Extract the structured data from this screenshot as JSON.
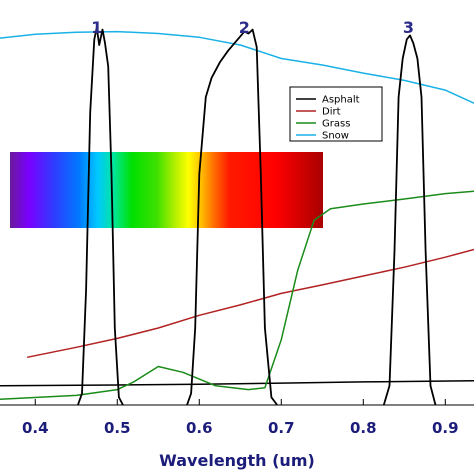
{
  "chart_data": {
    "type": "line",
    "xlabel": "Wavelength (um)",
    "xticks": [
      0.4,
      0.5,
      0.6,
      0.7,
      0.8,
      0.9
    ],
    "xlim": [
      0.357,
      0.935
    ],
    "ylim": [
      0,
      1
    ],
    "band_labels": [
      {
        "label": "1",
        "x": 0.475
      },
      {
        "label": "2",
        "x": 0.655
      },
      {
        "label": "3",
        "x": 0.855
      }
    ],
    "legend_position": "right",
    "series": [
      {
        "name": "Asphalt",
        "color": "#000000",
        "x": [
          0.357,
          0.5,
          0.6,
          0.7,
          0.8,
          0.935
        ],
        "y": [
          0.05,
          0.052,
          0.054,
          0.057,
          0.06,
          0.063
        ]
      },
      {
        "name": "Dirt",
        "color": "#b22222",
        "x": [
          0.39,
          0.45,
          0.5,
          0.55,
          0.6,
          0.65,
          0.7,
          0.75,
          0.8,
          0.85,
          0.9,
          0.935
        ],
        "y": [
          0.124,
          0.15,
          0.173,
          0.2,
          0.233,
          0.26,
          0.29,
          0.312,
          0.335,
          0.358,
          0.384,
          0.404
        ]
      },
      {
        "name": "Grass",
        "color": "#1a8c1a",
        "x": [
          0.357,
          0.45,
          0.5,
          0.52,
          0.55,
          0.58,
          0.62,
          0.66,
          0.68,
          0.7,
          0.72,
          0.74,
          0.76,
          0.8,
          0.85,
          0.9,
          0.935
        ],
        "y": [
          0.015,
          0.025,
          0.04,
          0.06,
          0.1,
          0.085,
          0.05,
          0.04,
          0.045,
          0.17,
          0.35,
          0.48,
          0.51,
          0.522,
          0.535,
          0.549,
          0.555
        ]
      },
      {
        "name": "Snow",
        "color": "#1ab2e6",
        "x": [
          0.357,
          0.4,
          0.45,
          0.5,
          0.55,
          0.6,
          0.65,
          0.7,
          0.75,
          0.8,
          0.85,
          0.9,
          0.935
        ],
        "y": [
          0.953,
          0.963,
          0.968,
          0.97,
          0.965,
          0.955,
          0.935,
          0.9,
          0.883,
          0.862,
          0.843,
          0.818,
          0.784
        ]
      }
    ],
    "filters": [
      {
        "name": "Band 1",
        "color": "#000000",
        "x": [
          0.452,
          0.457,
          0.462,
          0.467,
          0.472,
          0.475,
          0.478,
          0.482,
          0.485,
          0.489,
          0.493,
          0.497,
          0.502,
          0.507
        ],
        "y": [
          0.0,
          0.03,
          0.3,
          0.76,
          0.95,
          0.98,
          0.935,
          0.975,
          0.94,
          0.88,
          0.6,
          0.2,
          0.02,
          0.0
        ]
      },
      {
        "name": "Band 2",
        "color": "#000000",
        "x": [
          0.585,
          0.59,
          0.595,
          0.6,
          0.608,
          0.615,
          0.625,
          0.635,
          0.645,
          0.655,
          0.66,
          0.665,
          0.67,
          0.675,
          0.68,
          0.688,
          0.695
        ],
        "y": [
          0.0,
          0.03,
          0.2,
          0.6,
          0.8,
          0.85,
          0.89,
          0.92,
          0.945,
          0.97,
          0.965,
          0.975,
          0.93,
          0.6,
          0.2,
          0.02,
          0.0
        ]
      },
      {
        "name": "Band 3",
        "color": "#000000",
        "x": [
          0.825,
          0.832,
          0.838,
          0.843,
          0.848,
          0.853,
          0.857,
          0.861,
          0.866,
          0.871,
          0.876,
          0.882,
          0.888
        ],
        "y": [
          0.0,
          0.05,
          0.4,
          0.8,
          0.9,
          0.95,
          0.96,
          0.94,
          0.9,
          0.8,
          0.4,
          0.05,
          0.0
        ]
      }
    ]
  }
}
